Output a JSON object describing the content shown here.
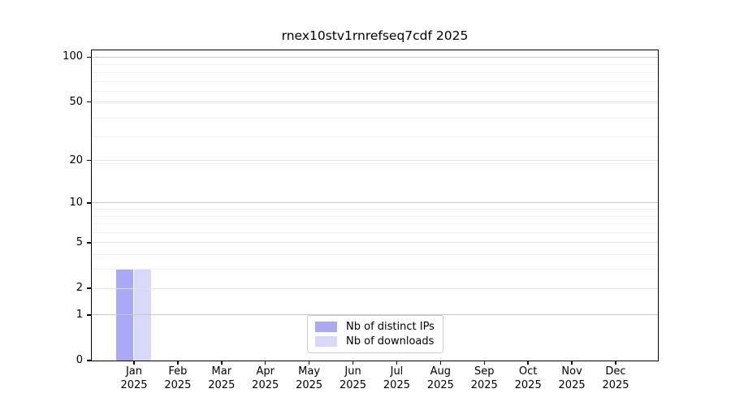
{
  "chart_data": {
    "type": "bar",
    "title": "rnex10stv1rnrefseq7cdf 2025",
    "categories": [
      "Jan",
      "Feb",
      "Mar",
      "Apr",
      "May",
      "Jun",
      "Jul",
      "Aug",
      "Sep",
      "Oct",
      "Nov",
      "Dec"
    ],
    "category_sublabel": "2025",
    "series": [
      {
        "name": "Nb of distinct IPs",
        "color": "#a9a9f5",
        "values": [
          3,
          0,
          0,
          0,
          0,
          0,
          0,
          0,
          0,
          0,
          0,
          0
        ]
      },
      {
        "name": "Nb of downloads",
        "color": "#d8d8f9",
        "values": [
          3,
          0,
          0,
          0,
          0,
          0,
          0,
          0,
          0,
          0,
          0,
          0
        ]
      }
    ],
    "yscale": "log10(value+1)",
    "ylim": [
      0,
      111
    ],
    "yticks": [
      0,
      1,
      2,
      5,
      10,
      20,
      50,
      100
    ],
    "yticks_emphasis": [
      1,
      10,
      100
    ],
    "yticks_minor": [
      3,
      4,
      6,
      7,
      8,
      9,
      19,
      29,
      39,
      49,
      59,
      69,
      79,
      89
    ],
    "xlabel": "",
    "ylabel": "",
    "grid": "horizontal",
    "legend": {
      "position": "lower-center",
      "items": [
        "Nb of distinct IPs",
        "Nb of downloads"
      ]
    }
  },
  "colors": {
    "background": "#ffffff",
    "axis_spine": "#000000",
    "grid_emphasis": "#c6c6c6",
    "grid_major": "#e2e2e2",
    "grid_minor": "#f0f0f0",
    "legend_border": "#cccccc",
    "text": "#000000"
  }
}
